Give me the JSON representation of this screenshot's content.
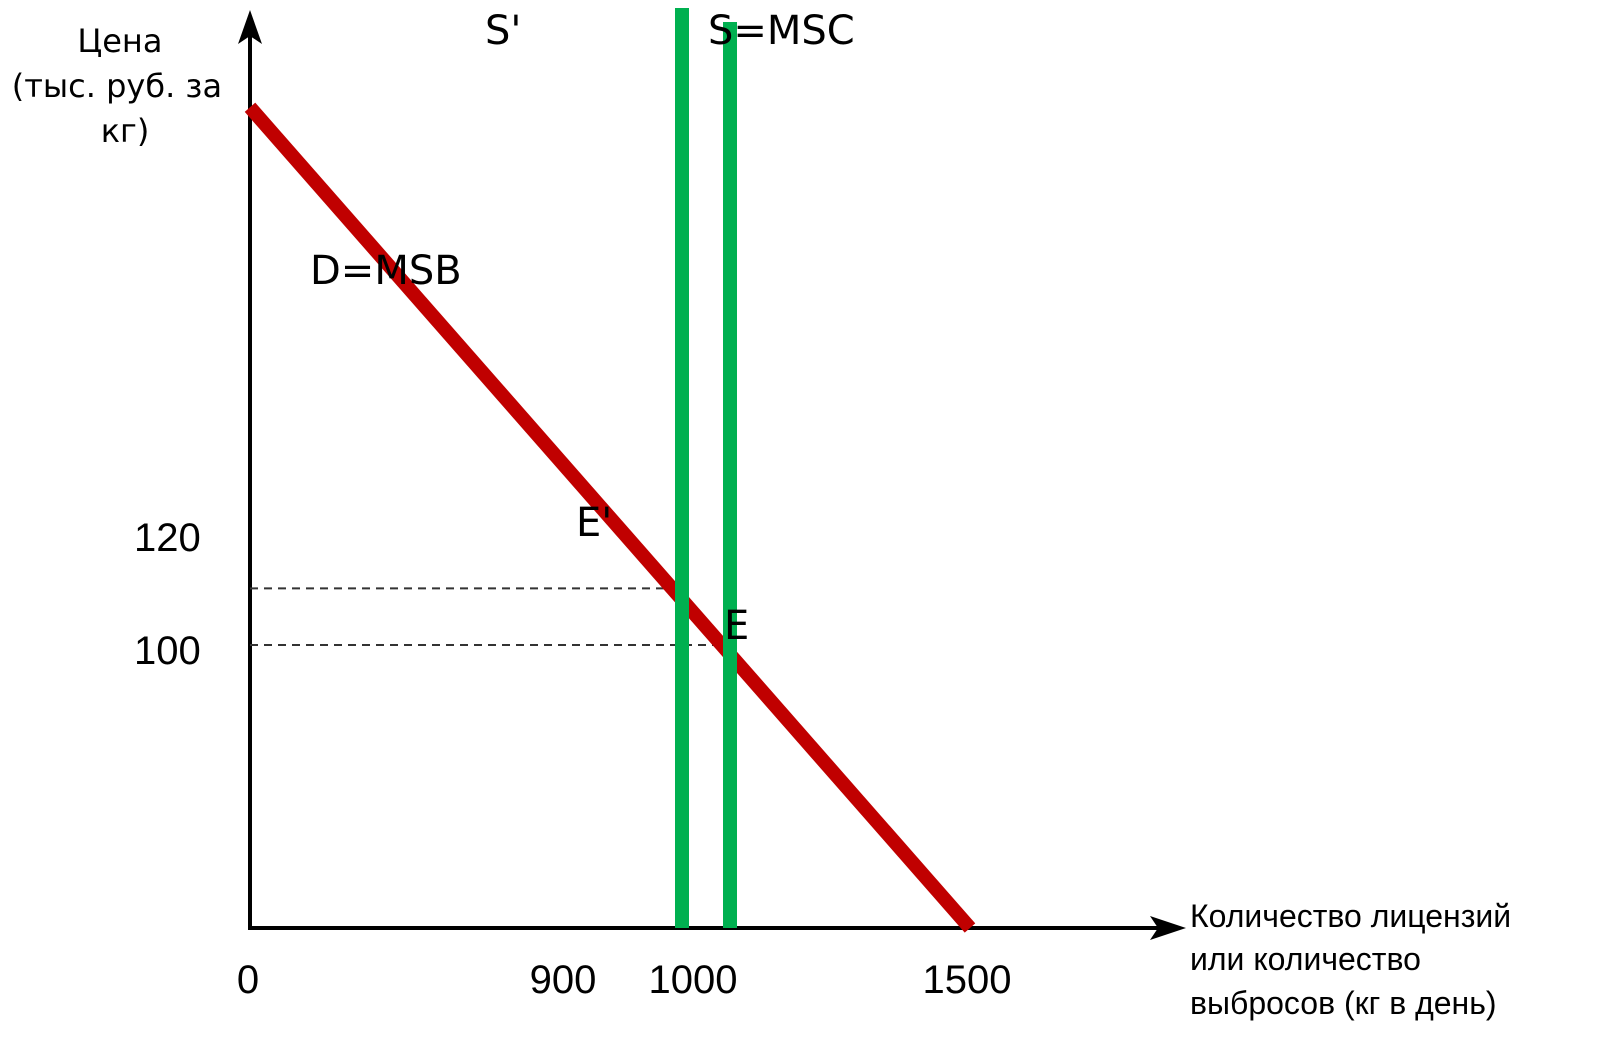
{
  "chart_data": {
    "type": "line",
    "ylabel_lines": [
      "Цена",
      "(тыс. руб. за",
      "кг)"
    ],
    "xlabel_lines": [
      "Количество лицензий",
      "или количество",
      "выбросов (кг в день)"
    ],
    "x_ticks": [
      {
        "value": 0,
        "label": "0"
      },
      {
        "value": 900,
        "label": "900"
      },
      {
        "value": 1000,
        "label": "1000"
      },
      {
        "value": 1500,
        "label": "1500"
      }
    ],
    "y_ticks": [
      {
        "value": 100,
        "label": "100"
      },
      {
        "value": 120,
        "label": "120"
      }
    ],
    "xlim": [
      0,
      1900
    ],
    "ylim": [
      0,
      340
    ],
    "series": [
      {
        "name": "D=MSB",
        "kind": "line",
        "color": "#c00000",
        "points": [
          [
            0,
            290
          ],
          [
            1500,
            0
          ]
        ]
      },
      {
        "name": "S'",
        "kind": "vertical",
        "color": "#00b050",
        "x": 900
      },
      {
        "name": "S=MSC",
        "kind": "vertical",
        "color": "#00b050",
        "x": 1000
      }
    ],
    "guides": [
      {
        "from": [
          0,
          120
        ],
        "to": [
          900,
          120
        ],
        "style": "dashed"
      },
      {
        "from": [
          0,
          100
        ],
        "to": [
          1000,
          100
        ],
        "style": "dashed"
      }
    ],
    "points": [
      {
        "label": "E'",
        "x": 900,
        "y": 120
      },
      {
        "label": "E",
        "x": 1000,
        "y": 100
      }
    ]
  }
}
